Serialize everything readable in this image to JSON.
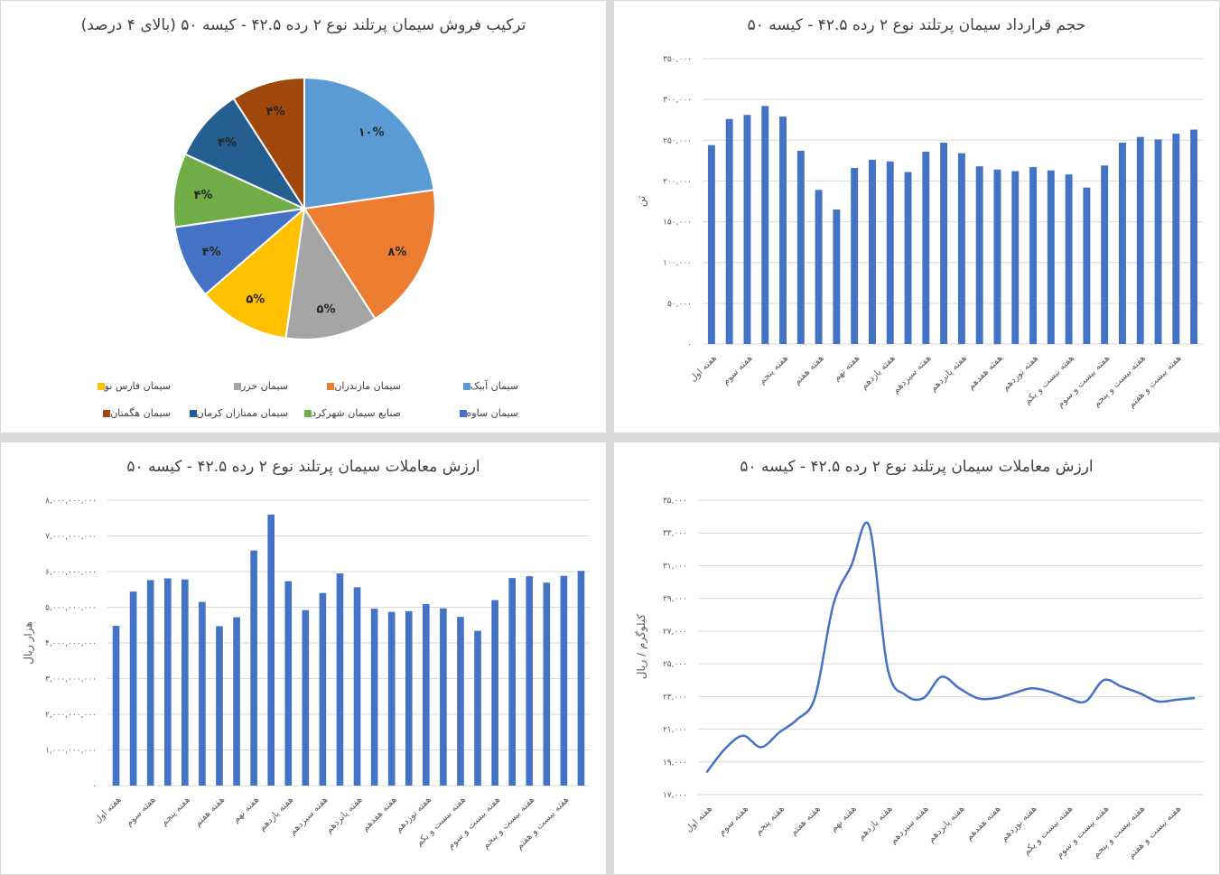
{
  "colors": {
    "bar": "#4472C4",
    "grid": "#d9d9d9",
    "axis_text": "#595959",
    "title": "#404040"
  },
  "x_labels": [
    "هفته اول",
    "هفته سوم",
    "هفته پنجم",
    "هفته هفتم",
    "هفته نهم",
    "هفته یازدهم",
    "هفته سیزدهم",
    "هفته پانزدهم",
    "هفته هفدهم",
    "هفته نوزدهم",
    "هفته بیست و یکم",
    "هفته بیست و سوم",
    "هفته بیست و پنجم",
    "هفته بیست و هفتم"
  ],
  "chart_data": [
    {
      "id": "pie",
      "type": "pie",
      "title": "ترکیب فروش سیمان پرتلند نوع ۲ رده ۴۲.۵ - کیسه ۵۰ (بالای ۴ درصد)",
      "slices": [
        {
          "name": "سیمان آبیک",
          "value": 10,
          "label": "۱۰%",
          "color": "#5B9BD5"
        },
        {
          "name": "سیمان مازندران",
          "value": 8,
          "label": "۸%",
          "color": "#ED7D31"
        },
        {
          "name": "سیمان خزر",
          "value": 5,
          "label": "۵%",
          "color": "#A5A5A5"
        },
        {
          "name": "سیمان فارس نو",
          "value": 5,
          "label": "۵%",
          "color": "#FFC000"
        },
        {
          "name": "سیمان ساوه",
          "value": 4,
          "label": "۴%",
          "color": "#4472C4"
        },
        {
          "name": "صنایع سیمان شهرکرد",
          "value": 4,
          "label": "۴%",
          "color": "#70AD47"
        },
        {
          "name": "سیمان ممتازان کرمان",
          "value": 4,
          "label": "۴%",
          "color": "#255E91"
        },
        {
          "name": "سیمان هگمتان",
          "value": 4,
          "label": "۴%",
          "color": "#9E480E"
        }
      ],
      "legend_position": "bottom"
    },
    {
      "id": "volume",
      "type": "bar",
      "title": "حجم قرارداد سیمان پرتلند نوع ۲ رده ۴۲.۵ - کیسه ۵۰",
      "ylabel": "تن",
      "ylim": [
        0,
        350000
      ],
      "yticks": [
        0,
        50000,
        100000,
        150000,
        200000,
        250000,
        300000,
        350000
      ],
      "ytick_labels": [
        "۰",
        "۵۰,۰۰۰",
        "۱۰۰,۰۰۰",
        "۱۵۰,۰۰۰",
        "۲۰۰,۰۰۰",
        "۲۵۰,۰۰۰",
        "۳۰۰,۰۰۰",
        "۳۵۰,۰۰۰"
      ],
      "values": [
        244000,
        276000,
        281000,
        292000,
        279000,
        237000,
        189000,
        165000,
        216000,
        226000,
        224000,
        211000,
        236000,
        247000,
        234000,
        218000,
        214000,
        212000,
        217000,
        213000,
        208000,
        192000,
        219000,
        247000,
        254000,
        251000,
        258000,
        263000
      ],
      "grid": true
    },
    {
      "id": "value",
      "type": "bar",
      "title": "ارزش معاملات سیمان پرتلند نوع ۲ رده ۴۲.۵ - کیسه ۵۰",
      "ylabel": "هزار ریال",
      "ylim": [
        0,
        8000000000
      ],
      "yticks": [
        0,
        1000000000,
        2000000000,
        3000000000,
        4000000000,
        5000000000,
        6000000000,
        7000000000,
        8000000000
      ],
      "ytick_labels": [
        "۰",
        "۱,۰۰۰,۰۰۰,۰۰۰",
        "۲,۰۰۰,۰۰۰,۰۰۰",
        "۳,۰۰۰,۰۰۰,۰۰۰",
        "۴,۰۰۰,۰۰۰,۰۰۰",
        "۵,۰۰۰,۰۰۰,۰۰۰",
        "۶,۰۰۰,۰۰۰,۰۰۰",
        "۷,۰۰۰,۰۰۰,۰۰۰",
        "۸,۰۰۰,۰۰۰,۰۰۰"
      ],
      "values": [
        4480000000,
        5440000000,
        5760000000,
        5810000000,
        5780000000,
        5150000000,
        4470000000,
        4720000000,
        6590000000,
        7600000000,
        5730000000,
        4920000000,
        5400000000,
        5950000000,
        5560000000,
        4960000000,
        4870000000,
        4890000000,
        5090000000,
        4970000000,
        4730000000,
        4340000000,
        5200000000,
        5820000000,
        5870000000,
        5690000000,
        5880000000,
        6020000000
      ],
      "grid": true
    },
    {
      "id": "price",
      "type": "line",
      "title": "ارزش معاملات سیمان پرتلند نوع ۲ رده ۴۲.۵ - کیسه ۵۰",
      "ylabel": "کیلوگرم / ریال",
      "ylim": [
        17000,
        35000
      ],
      "yticks": [
        17000,
        19000,
        21000,
        23000,
        25000,
        27000,
        29000,
        31000,
        33000,
        35000
      ],
      "ytick_labels": [
        "۱۷,۰۰۰",
        "۱۹,۰۰۰",
        "۲۱,۰۰۰",
        "۲۳,۰۰۰",
        "۲۵,۰۰۰",
        "۲۷,۰۰۰",
        "۲۹,۰۰۰",
        "۳۱,۰۰۰",
        "۳۳,۰۰۰",
        "۳۵,۰۰۰"
      ],
      "values": [
        18400,
        19800,
        20600,
        19900,
        20800,
        21600,
        23000,
        28600,
        31000,
        33400,
        24800,
        23100,
        22900,
        24200,
        23500,
        22900,
        22900,
        23200,
        23500,
        23300,
        22900,
        22700,
        24000,
        23600,
        23200,
        22700,
        22800,
        22900
      ],
      "grid": true
    }
  ]
}
